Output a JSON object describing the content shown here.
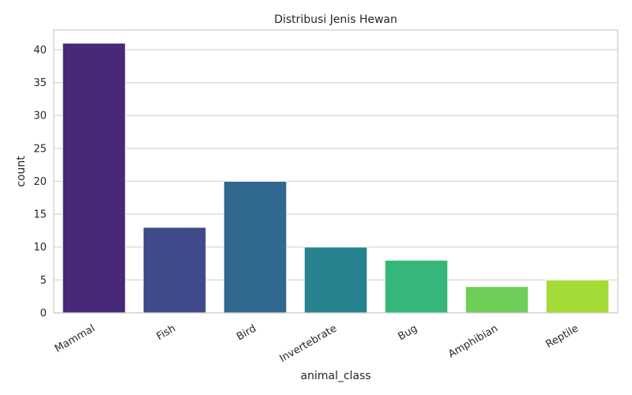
{
  "chart_data": {
    "type": "bar",
    "title": "Distribusi Jenis Hewan",
    "xlabel": "animal_class",
    "ylabel": "count",
    "categories": [
      "Mammal",
      "Fish",
      "Bird",
      "Invertebrate",
      "Bug",
      "Amphibian",
      "Reptile"
    ],
    "values": [
      41,
      13,
      20,
      10,
      8,
      4,
      5
    ],
    "colors": [
      "#482878",
      "#3e4a89",
      "#31688e",
      "#26828e",
      "#35b779",
      "#6ece58",
      "#a5db36"
    ],
    "ylim": [
      0,
      43
    ],
    "yticks": [
      0,
      5,
      10,
      15,
      20,
      25,
      30,
      35,
      40
    ],
    "grid": true,
    "xtick_rotation": 30
  }
}
